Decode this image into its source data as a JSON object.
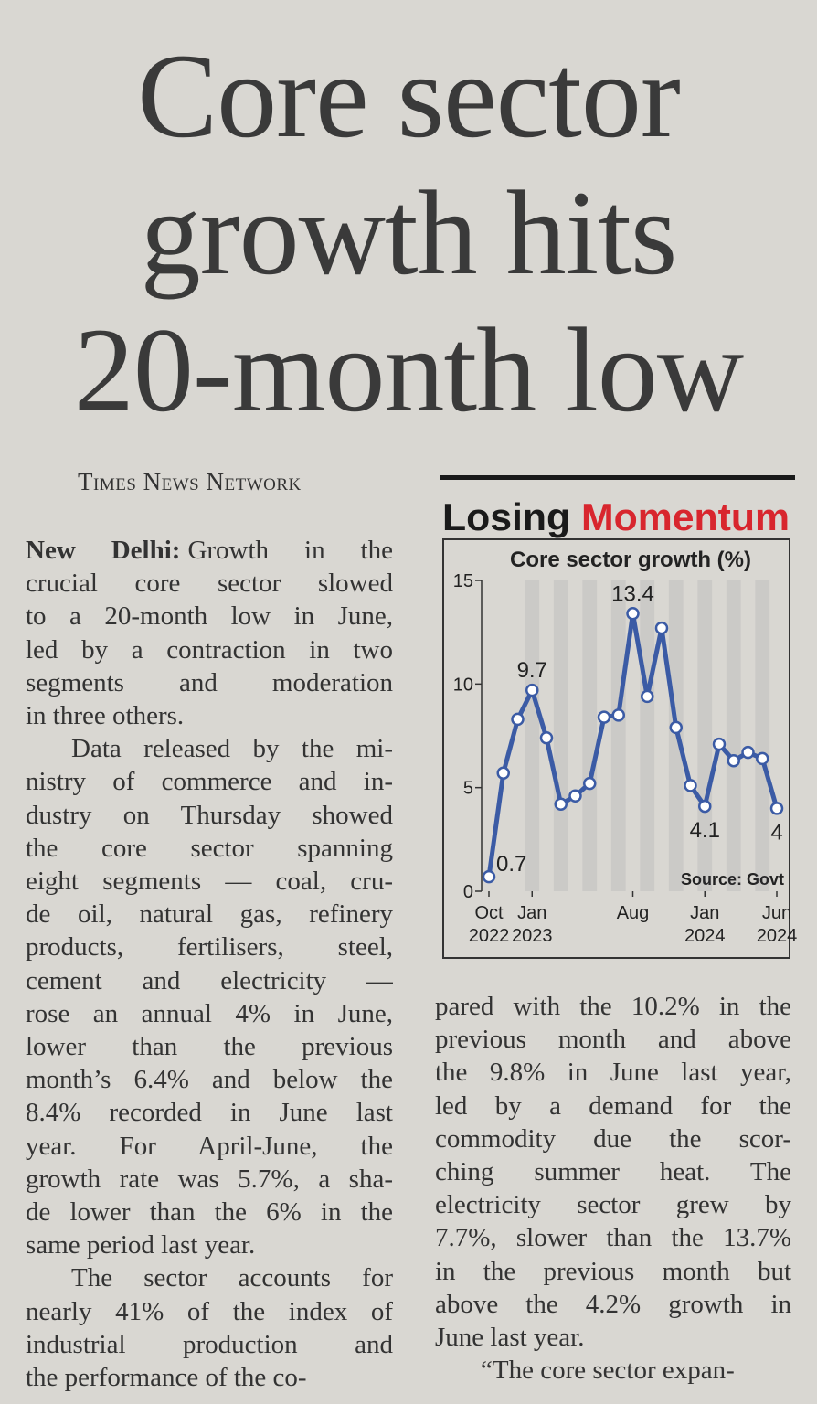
{
  "headline": [
    "Core sector",
    "growth hits",
    "20-month low"
  ],
  "byline": "Times News Network",
  "article": {
    "dateline": "New Delhi:",
    "left_column": [
      {
        "lines": [
          "Growth in the",
          "crucial core sector slowed",
          "to a 20-month low in June,",
          "led by a contraction in two",
          "segments and moderation",
          "in three others."
        ]
      },
      {
        "lines": [
          "Data released by the mi-",
          "nistry of commerce and in-",
          "dustry on Thursday showed",
          "the core sector spanning",
          "eight segments — coal, cru-",
          "de oil, natural gas, refinery",
          "products, fertilisers, steel,",
          "cement and electricity —",
          "rose an annual 4% in June,",
          "lower than the previous",
          "month’s 6.4% and below the",
          "8.4% recorded in June last",
          "year. For April-June, the",
          "growth rate was 5.7%, a sha-",
          "de lower than the 6% in the",
          "same period last year."
        ]
      },
      {
        "lines": [
          "The sector accounts for",
          "nearly 41% of the index of",
          "industrial production and",
          "the performance of the co-"
        ]
      }
    ],
    "right_column": [
      {
        "lines": [
          "pared with the 10.2% in the",
          "previous month and above",
          "the 9.8% in June last year,",
          "led by a demand for the",
          "commodity due the scor-",
          "ching summer heat. The",
          "electricity sector grew by",
          "7.7%, slower than the 13.7%",
          "in the previous month but",
          "above the 4.2% growth in",
          "June last year."
        ]
      },
      {
        "lines": [
          "“The core sector expan-"
        ]
      }
    ]
  },
  "chart_data": {
    "type": "line",
    "title_parts": [
      "Losing",
      "Momentum"
    ],
    "subtitle": "Core sector growth (%)",
    "source": "Source: Govt",
    "categories": [
      "Oct 2022",
      null,
      null,
      "Jan 2023",
      null,
      null,
      null,
      null,
      null,
      null,
      "Aug",
      null,
      null,
      null,
      null,
      "Jan 2024",
      null,
      null,
      null,
      null,
      "Jun 2024"
    ],
    "values": [
      0.7,
      5.7,
      8.3,
      9.7,
      7.4,
      4.2,
      4.6,
      5.2,
      8.4,
      8.5,
      13.4,
      9.4,
      12.7,
      7.9,
      5.1,
      4.1,
      7.1,
      6.3,
      6.7,
      6.4,
      4
    ],
    "value_labels": [
      "0.7",
      null,
      null,
      "9.7",
      null,
      null,
      null,
      null,
      null,
      null,
      "13.4",
      null,
      null,
      null,
      null,
      "4.1",
      null,
      null,
      null,
      null,
      "4"
    ],
    "color": "#3b5ba5",
    "ylim": [
      0,
      15
    ],
    "yticks": [
      0,
      5,
      10,
      15
    ],
    "grid": false
  }
}
